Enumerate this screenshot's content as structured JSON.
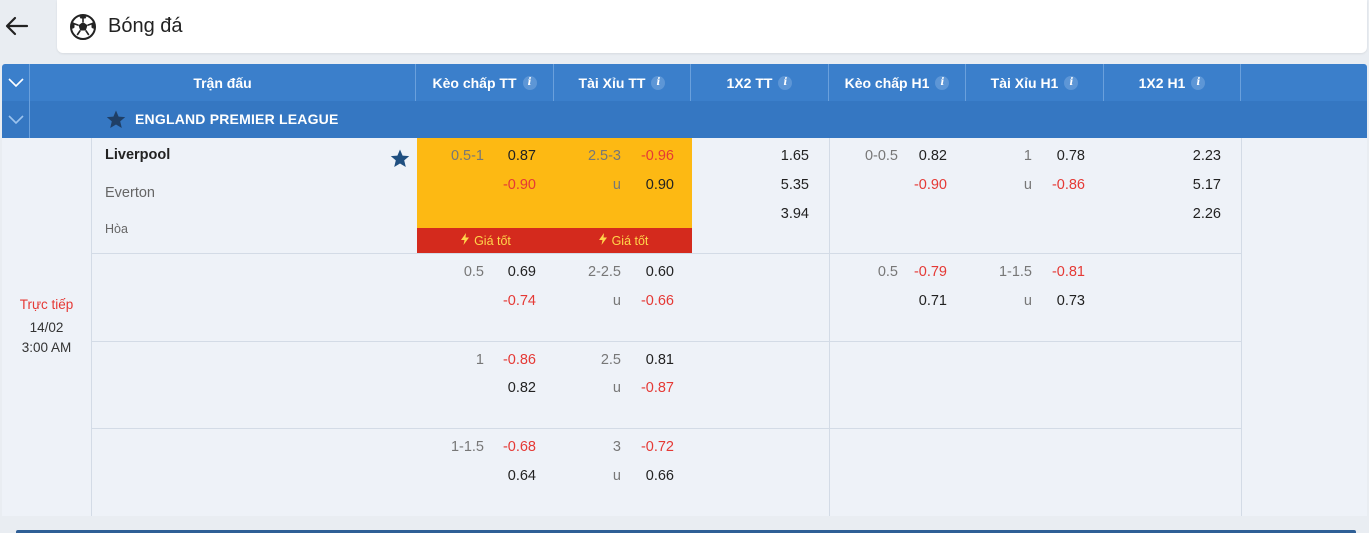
{
  "header": {
    "title": "Bóng đá",
    "back_icon": "arrow-left-icon",
    "sport_icon": "soccer-ball-icon"
  },
  "columns": [
    {
      "label": "Trận đấu",
      "info": ""
    },
    {
      "label": "Kèo chấp TT",
      "info": "i"
    },
    {
      "label": "Tài Xỉu TT",
      "info": "i"
    },
    {
      "label": "1X2 TT",
      "info": "i"
    },
    {
      "label": "Kèo chấp H1",
      "info": "i"
    },
    {
      "label": "Tài Xỉu H1",
      "info": "i"
    },
    {
      "label": "1X2 H1",
      "info": "i"
    }
  ],
  "league": {
    "name": "ENGLAND PREMIER LEAGUE"
  },
  "match": {
    "status": "Trực tiếp",
    "date": "14/02",
    "time": "3:00 AM",
    "home": "Liverpool",
    "away": "Everton",
    "draw": "Hòa",
    "best_price_label": "Giá tốt"
  },
  "rows": [
    {
      "hcp_ft": {
        "line": "0.5-1",
        "home": "0.87",
        "away": "-0.90"
      },
      "ou_ft": {
        "line": "2.5-3",
        "under_label": "u",
        "over": "-0.96",
        "under": "0.90"
      },
      "x12_ft": {
        "home": "1.65",
        "away": "5.35",
        "draw": "3.94"
      },
      "hcp_h1": {
        "line": "0-0.5",
        "home": "0.82",
        "away": "-0.90"
      },
      "ou_h1": {
        "line": "1",
        "under_label": "u",
        "over": "0.78",
        "under": "-0.86"
      },
      "x12_h1": {
        "home": "2.23",
        "away": "5.17",
        "draw": "2.26"
      }
    },
    {
      "hcp_ft": {
        "line": "0.5",
        "home": "0.69",
        "away": "-0.74"
      },
      "ou_ft": {
        "line": "2-2.5",
        "under_label": "u",
        "over": "0.60",
        "under": "-0.66"
      },
      "hcp_h1": {
        "line": "0.5",
        "home": "-0.79",
        "away": "0.71"
      },
      "ou_h1": {
        "line": "1-1.5",
        "under_label": "u",
        "over": "-0.81",
        "under": "0.73"
      }
    },
    {
      "hcp_ft": {
        "line": "1",
        "home": "-0.86",
        "away": "0.82"
      },
      "ou_ft": {
        "line": "2.5",
        "under_label": "u",
        "over": "0.81",
        "under": "-0.87"
      }
    },
    {
      "hcp_ft": {
        "line": "1-1.5",
        "home": "-0.68",
        "away": "0.64"
      },
      "ou_ft": {
        "line": "3",
        "under_label": "u",
        "over": "-0.72",
        "under": "0.66"
      }
    }
  ],
  "colors": {
    "header_blue": "#3b7fcb",
    "league_blue": "#3577c2",
    "highlight_yellow": "#fdb913",
    "best_red": "#d42a1d",
    "negative_red": "#e53935"
  }
}
